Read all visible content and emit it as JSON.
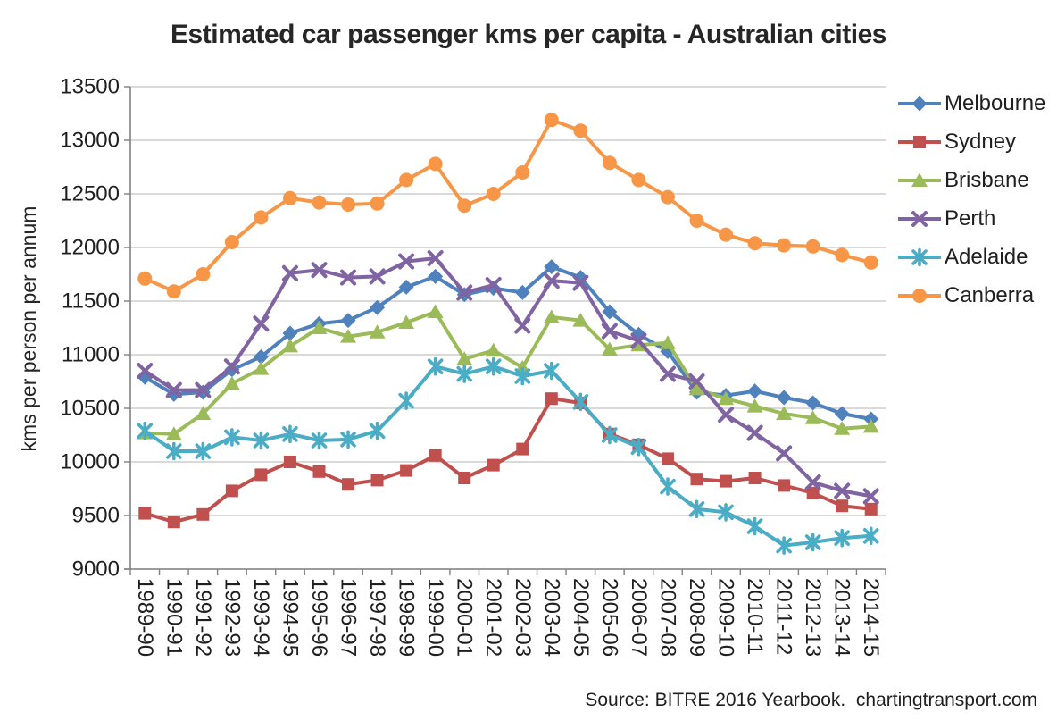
{
  "source_note": "Source: BITRE 2016 Yearbook.  chartingtransport.com",
  "chart_data": {
    "type": "line",
    "title": "Estimated car passenger kms per capita - Australian cities",
    "xlabel": "",
    "ylabel": "kms per person per annum",
    "ylim": [
      9000,
      13500
    ],
    "ytick_step": 500,
    "grid": true,
    "legend_position": "right",
    "categories": [
      "1989-90",
      "1990-91",
      "1991-92",
      "1992-93",
      "1993-94",
      "1994-95",
      "1995-96",
      "1996-97",
      "1997-98",
      "1998-99",
      "1999-00",
      "2000-01",
      "2001-02",
      "2002-03",
      "2003-04",
      "2004-05",
      "2005-06",
      "2006-07",
      "2007-08",
      "2008-09",
      "2009-10",
      "2010-11",
      "2011-12",
      "2012-13",
      "2013-14",
      "2014-15"
    ],
    "series": [
      {
        "name": "Melbourne",
        "color": "#4F81BD",
        "marker": "diamond",
        "values": [
          10790,
          10630,
          10650,
          10860,
          10980,
          11200,
          11290,
          11320,
          11440,
          11630,
          11730,
          11560,
          11620,
          11580,
          11820,
          11720,
          11400,
          11190,
          11030,
          10650,
          10620,
          10660,
          10600,
          10550,
          10450,
          10400
        ]
      },
      {
        "name": "Sydney",
        "color": "#C0504D",
        "marker": "square",
        "values": [
          9520,
          9440,
          9510,
          9730,
          9880,
          10000,
          9910,
          9790,
          9830,
          9920,
          10060,
          9850,
          9970,
          10120,
          10590,
          10550,
          10260,
          10160,
          10030,
          9840,
          9820,
          9850,
          9780,
          9710,
          9590,
          9560
        ]
      },
      {
        "name": "Brisbane",
        "color": "#9BBB59",
        "marker": "triangle",
        "values": [
          10270,
          10260,
          10450,
          10730,
          10870,
          11080,
          11250,
          11170,
          11210,
          11300,
          11400,
          10960,
          11040,
          10880,
          11350,
          11320,
          11050,
          11090,
          11110,
          10680,
          10590,
          10520,
          10450,
          10410,
          10310,
          10330
        ]
      },
      {
        "name": "Perth",
        "color": "#8064A2",
        "marker": "x",
        "values": [
          10850,
          10670,
          10670,
          10890,
          11290,
          11760,
          11790,
          11720,
          11730,
          11870,
          11900,
          11580,
          11650,
          11270,
          11690,
          11670,
          11220,
          11130,
          10820,
          10750,
          10440,
          10270,
          10080,
          9810,
          9730,
          9680
        ]
      },
      {
        "name": "Adelaide",
        "color": "#4BACC6",
        "marker": "star",
        "values": [
          10290,
          10100,
          10100,
          10230,
          10200,
          10260,
          10200,
          10210,
          10290,
          10570,
          10890,
          10820,
          10890,
          10800,
          10850,
          10560,
          10250,
          10140,
          9770,
          9560,
          9530,
          9400,
          9220,
          9250,
          9290,
          9310
        ]
      },
      {
        "name": "Canberra",
        "color": "#F79646",
        "marker": "circle",
        "values": [
          11710,
          11590,
          11750,
          12050,
          12280,
          12460,
          12420,
          12400,
          12410,
          12630,
          12780,
          12390,
          12500,
          12700,
          13190,
          13090,
          12790,
          12630,
          12470,
          12250,
          12120,
          12040,
          12020,
          12010,
          11930,
          11860
        ]
      }
    ],
    "axis_color": "#808080",
    "gridline_color": "#C3C3C3",
    "tick_label_color": "#1f1f1f"
  }
}
